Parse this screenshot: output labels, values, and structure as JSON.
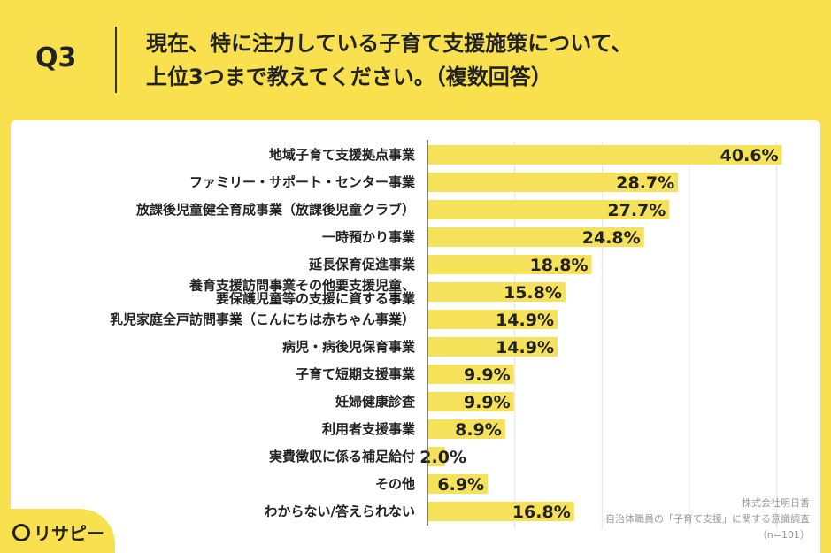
{
  "question": {
    "number": "Q3",
    "title_line1": "現在、特に注力している子育て支援施策について、",
    "title_line2": "上位3つまで教えてください。（複数回答）"
  },
  "logo": {
    "text": "リサピー"
  },
  "source": {
    "company": "株式会社明日香",
    "survey": "自治体職員の「子育て支援」に関する意識調査",
    "sample": "（n=101）"
  },
  "colors": {
    "bar": "#f5e25a",
    "background": "#f8e04e",
    "axis": "#555555"
  },
  "chart_data": {
    "type": "bar",
    "orientation": "horizontal",
    "unit": "%",
    "xlim": [
      0,
      45
    ],
    "grid": true,
    "categories": [
      [
        "地域子育て支援拠点事業"
      ],
      [
        "ファミリー・サポート・センター事業"
      ],
      [
        "放課後児童健全育成事業（放課後児童クラブ）"
      ],
      [
        "一時預かり事業"
      ],
      [
        "延長保育促進事業"
      ],
      [
        "養育支援訪問事業その他要支援児童、",
        "要保護児童等の支援に資する事業"
      ],
      [
        "乳児家庭全戸訪問事業（こんにちは赤ちゃん事業）"
      ],
      [
        "病児・病後児保育事業"
      ],
      [
        "子育て短期支援事業"
      ],
      [
        "妊婦健康診査"
      ],
      [
        "利用者支援事業"
      ],
      [
        "実費徴収に係る補足給付"
      ],
      [
        "その他"
      ],
      [
        "わからない/答えられない"
      ]
    ],
    "values": [
      40.6,
      28.7,
      27.7,
      24.8,
      18.8,
      15.8,
      14.9,
      14.9,
      9.9,
      9.9,
      8.9,
      2.0,
      6.9,
      16.8
    ],
    "value_labels": [
      "40.6%",
      "28.7%",
      "27.7%",
      "24.8%",
      "18.8%",
      "15.8%",
      "14.9%",
      "14.9%",
      "9.9%",
      "9.9%",
      "8.9%",
      "2.0%",
      "6.9%",
      "16.8%"
    ]
  }
}
